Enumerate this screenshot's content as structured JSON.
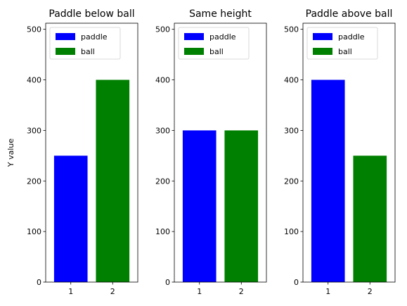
{
  "chart_data": [
    {
      "type": "bar",
      "title": "Paddle below ball",
      "xlabel": "",
      "ylabel": "Y value",
      "ylim": [
        0,
        512
      ],
      "yticks": [
        0,
        100,
        200,
        300,
        400,
        500
      ],
      "xticks": [
        1,
        2
      ],
      "legend": "top-left",
      "series": [
        {
          "name": "paddle",
          "color": "#0000ff",
          "x": [
            1
          ],
          "values": [
            250
          ]
        },
        {
          "name": "ball",
          "color": "#008000",
          "x": [
            2
          ],
          "values": [
            400
          ]
        }
      ]
    },
    {
      "type": "bar",
      "title": "Same height",
      "xlabel": "",
      "ylabel": "",
      "ylim": [
        0,
        512
      ],
      "yticks": [
        0,
        100,
        200,
        300,
        400,
        500
      ],
      "xticks": [
        1,
        2
      ],
      "legend": "top-left",
      "series": [
        {
          "name": "paddle",
          "color": "#0000ff",
          "x": [
            1
          ],
          "values": [
            300
          ]
        },
        {
          "name": "ball",
          "color": "#008000",
          "x": [
            2
          ],
          "values": [
            300
          ]
        }
      ]
    },
    {
      "type": "bar",
      "title": "Paddle above ball",
      "xlabel": "",
      "ylabel": "",
      "ylim": [
        0,
        512
      ],
      "yticks": [
        0,
        100,
        200,
        300,
        400,
        500
      ],
      "xticks": [
        1,
        2
      ],
      "legend": "top-left",
      "series": [
        {
          "name": "paddle",
          "color": "#0000ff",
          "x": [
            1
          ],
          "values": [
            400
          ]
        },
        {
          "name": "ball",
          "color": "#008000",
          "x": [
            2
          ],
          "values": [
            250
          ]
        }
      ]
    }
  ]
}
